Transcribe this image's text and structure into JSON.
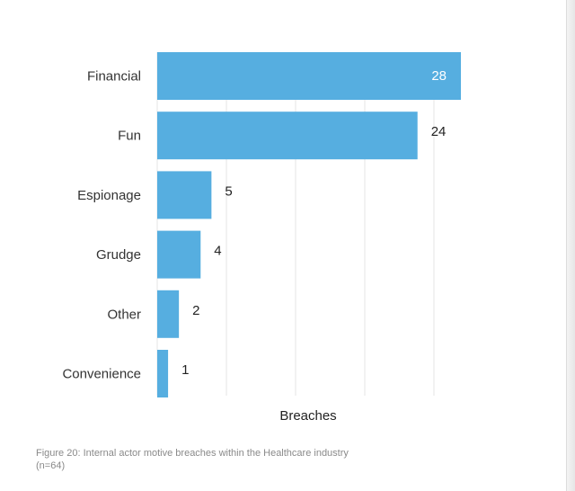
{
  "chart_data": {
    "type": "bar",
    "orientation": "horizontal",
    "categories": [
      "Financial",
      "Fun",
      "Espionage",
      "Grudge",
      "Other",
      "Convenience"
    ],
    "values": [
      28,
      24,
      5,
      4,
      2,
      1
    ],
    "xlabel": "Breaches",
    "ylabel": "",
    "xlim": [
      0,
      28
    ],
    "bar_color": "#56aee0",
    "grid": "vertical",
    "legend": "none"
  },
  "caption": {
    "line1": "Figure 20: Internal actor motive breaches within the Healthcare industry",
    "line2": "(n=64)"
  },
  "colors": {
    "bar": "#56aee0",
    "grid": "#e4e4e4",
    "caption": "#8a8a8a"
  }
}
